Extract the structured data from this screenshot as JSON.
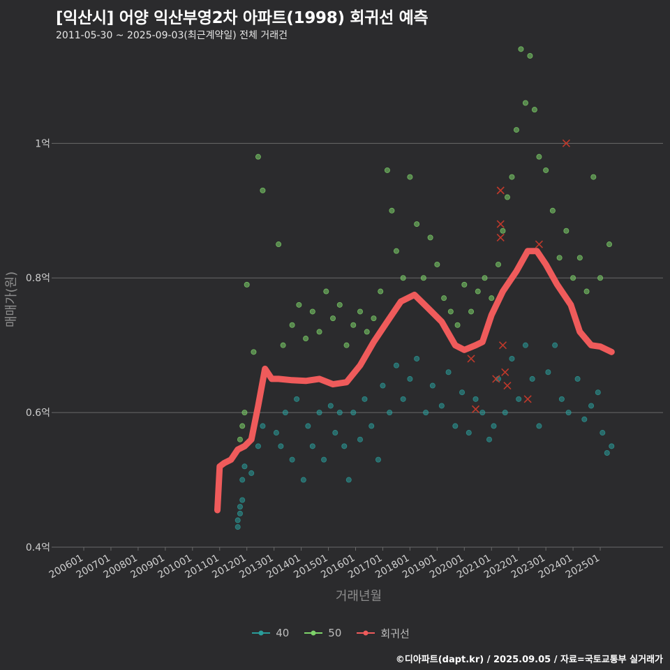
{
  "header": {
    "title": "[익산시] 어양 익산부영2차 아파트(1998) 회귀선 예측",
    "subtitle": "2011-05-30 ~ 2025-09-03(최근계약일) 전체 거래건"
  },
  "footer": {
    "credit": "©디아파트(dapt.kr) / 2025.09.05 / 자료=국토교통부 실거래가"
  },
  "colors": {
    "background": "#2b2b2d",
    "grid": "#6a6a6a",
    "series_40": "#2a9d9a",
    "series_50": "#7ed36a",
    "regression": "#ef5b5b",
    "cancelled_marker": "#c0392b"
  },
  "chart_data": {
    "type": "scatter",
    "title": "[익산시] 어양 익산부영2차 아파트(1998) 회귀선 예측",
    "subtitle": "2011-05-30 ~ 2025-09-03(최근계약일) 전체 거래건",
    "xlabel": "거래년월",
    "ylabel": "매매가(원)",
    "xlim": [
      "2006-01",
      "2025-12"
    ],
    "ylim": [
      0.4,
      1.13
    ],
    "y_unit": "억",
    "y_ticks": [
      {
        "value": 0.4,
        "label": "0.4억"
      },
      {
        "value": 0.6,
        "label": "0.6억"
      },
      {
        "value": 0.8,
        "label": "0.8억"
      },
      {
        "value": 1.0,
        "label": "1억"
      }
    ],
    "x_ticks": [
      "200601",
      "200701",
      "200801",
      "200901",
      "201001",
      "201101",
      "201201",
      "201301",
      "201401",
      "201501",
      "201601",
      "201701",
      "201801",
      "201901",
      "202001",
      "202101",
      "202201",
      "202301",
      "202401",
      "202501"
    ],
    "grid": true,
    "legend_position": "bottom",
    "legend": [
      {
        "name": "40",
        "key": "s40"
      },
      {
        "name": "50",
        "key": "s50"
      },
      {
        "name": "회귀선",
        "key": "reg"
      }
    ],
    "series": [
      {
        "name": "40",
        "color": "#2a9d9a",
        "points": [
          [
            "2011-09",
            0.43
          ],
          [
            "2011-09",
            0.44
          ],
          [
            "2011-10",
            0.45
          ],
          [
            "2011-10",
            0.46
          ],
          [
            "2011-11",
            0.47
          ],
          [
            "2011-11",
            0.5
          ],
          [
            "2011-12",
            0.52
          ],
          [
            "2012-03",
            0.51
          ],
          [
            "2012-06",
            0.55
          ],
          [
            "2012-08",
            0.58
          ],
          [
            "2013-02",
            0.57
          ],
          [
            "2013-04",
            0.55
          ],
          [
            "2013-06",
            0.6
          ],
          [
            "2013-09",
            0.53
          ],
          [
            "2013-11",
            0.62
          ],
          [
            "2014-02",
            0.5
          ],
          [
            "2014-04",
            0.58
          ],
          [
            "2014-06",
            0.55
          ],
          [
            "2014-09",
            0.6
          ],
          [
            "2014-11",
            0.53
          ],
          [
            "2015-02",
            0.61
          ],
          [
            "2015-04",
            0.57
          ],
          [
            "2015-06",
            0.6
          ],
          [
            "2015-08",
            0.55
          ],
          [
            "2015-10",
            0.5
          ],
          [
            "2015-12",
            0.6
          ],
          [
            "2016-03",
            0.56
          ],
          [
            "2016-05",
            0.62
          ],
          [
            "2016-08",
            0.58
          ],
          [
            "2016-11",
            0.53
          ],
          [
            "2017-01",
            0.64
          ],
          [
            "2017-04",
            0.6
          ],
          [
            "2017-07",
            0.67
          ],
          [
            "2017-10",
            0.62
          ],
          [
            "2018-01",
            0.65
          ],
          [
            "2018-04",
            0.68
          ],
          [
            "2018-08",
            0.6
          ],
          [
            "2018-11",
            0.64
          ],
          [
            "2019-03",
            0.61
          ],
          [
            "2019-06",
            0.66
          ],
          [
            "2019-09",
            0.58
          ],
          [
            "2019-12",
            0.63
          ],
          [
            "2020-03",
            0.57
          ],
          [
            "2020-06",
            0.62
          ],
          [
            "2020-09",
            0.6
          ],
          [
            "2020-12",
            0.56
          ],
          [
            "2021-02",
            0.58
          ],
          [
            "2021-04",
            0.65
          ],
          [
            "2021-07",
            0.6
          ],
          [
            "2021-10",
            0.68
          ],
          [
            "2022-01",
            0.62
          ],
          [
            "2022-04",
            0.7
          ],
          [
            "2022-07",
            0.65
          ],
          [
            "2022-10",
            0.58
          ],
          [
            "2023-02",
            0.66
          ],
          [
            "2023-05",
            0.7
          ],
          [
            "2023-08",
            0.62
          ],
          [
            "2023-11",
            0.6
          ],
          [
            "2024-03",
            0.65
          ],
          [
            "2024-06",
            0.59
          ],
          [
            "2024-09",
            0.61
          ],
          [
            "2024-12",
            0.63
          ],
          [
            "2025-02",
            0.57
          ],
          [
            "2025-04",
            0.54
          ],
          [
            "2025-06",
            0.55
          ]
        ]
      },
      {
        "name": "50",
        "color": "#7ed36a",
        "points": [
          [
            "2011-10",
            0.56
          ],
          [
            "2011-11",
            0.58
          ],
          [
            "2011-12",
            0.6
          ],
          [
            "2012-01",
            0.79
          ],
          [
            "2012-04",
            0.69
          ],
          [
            "2012-06",
            0.98
          ],
          [
            "2012-08",
            0.93
          ],
          [
            "2013-03",
            0.85
          ],
          [
            "2013-05",
            0.7
          ],
          [
            "2013-09",
            0.73
          ],
          [
            "2013-12",
            0.76
          ],
          [
            "2014-03",
            0.71
          ],
          [
            "2014-06",
            0.75
          ],
          [
            "2014-09",
            0.72
          ],
          [
            "2014-12",
            0.78
          ],
          [
            "2015-03",
            0.74
          ],
          [
            "2015-06",
            0.76
          ],
          [
            "2015-09",
            0.7
          ],
          [
            "2015-12",
            0.73
          ],
          [
            "2016-03",
            0.75
          ],
          [
            "2016-06",
            0.72
          ],
          [
            "2016-09",
            0.74
          ],
          [
            "2016-12",
            0.78
          ],
          [
            "2017-03",
            0.96
          ],
          [
            "2017-05",
            0.9
          ],
          [
            "2017-07",
            0.84
          ],
          [
            "2017-10",
            0.8
          ],
          [
            "2018-01",
            0.95
          ],
          [
            "2018-04",
            0.88
          ],
          [
            "2018-07",
            0.8
          ],
          [
            "2018-10",
            0.86
          ],
          [
            "2019-01",
            0.82
          ],
          [
            "2019-04",
            0.77
          ],
          [
            "2019-07",
            0.75
          ],
          [
            "2019-10",
            0.73
          ],
          [
            "2020-01",
            0.79
          ],
          [
            "2020-04",
            0.75
          ],
          [
            "2020-07",
            0.78
          ],
          [
            "2020-10",
            0.8
          ],
          [
            "2021-01",
            0.77
          ],
          [
            "2021-04",
            0.82
          ],
          [
            "2021-06",
            0.87
          ],
          [
            "2021-08",
            0.92
          ],
          [
            "2021-10",
            0.95
          ],
          [
            "2021-12",
            1.02
          ],
          [
            "2022-02",
            1.14
          ],
          [
            "2022-04",
            1.06
          ],
          [
            "2022-06",
            1.13
          ],
          [
            "2022-08",
            1.05
          ],
          [
            "2022-10",
            0.98
          ],
          [
            "2023-01",
            0.96
          ],
          [
            "2023-04",
            0.9
          ],
          [
            "2023-07",
            0.83
          ],
          [
            "2023-10",
            0.87
          ],
          [
            "2024-01",
            0.8
          ],
          [
            "2024-04",
            0.83
          ],
          [
            "2024-07",
            0.78
          ],
          [
            "2024-10",
            0.95
          ],
          [
            "2025-01",
            0.8
          ],
          [
            "2025-05",
            0.85
          ]
        ]
      },
      {
        "name": "회귀선",
        "color": "#ef5b5b",
        "points": [
          [
            "2010-12",
            0.455
          ],
          [
            "2011-01",
            0.52
          ],
          [
            "2011-03",
            0.525
          ],
          [
            "2011-06",
            0.53
          ],
          [
            "2011-09",
            0.545
          ],
          [
            "2011-12",
            0.55
          ],
          [
            "2012-03",
            0.56
          ],
          [
            "2012-06",
            0.61
          ],
          [
            "2012-09",
            0.665
          ],
          [
            "2012-12",
            0.65
          ],
          [
            "2013-03",
            0.65
          ],
          [
            "2013-09",
            0.648
          ],
          [
            "2014-03",
            0.647
          ],
          [
            "2014-09",
            0.65
          ],
          [
            "2015-03",
            0.642
          ],
          [
            "2015-09",
            0.645
          ],
          [
            "2016-03",
            0.67
          ],
          [
            "2016-09",
            0.705
          ],
          [
            "2017-03",
            0.735
          ],
          [
            "2017-09",
            0.765
          ],
          [
            "2018-03",
            0.775
          ],
          [
            "2018-09",
            0.755
          ],
          [
            "2019-03",
            0.735
          ],
          [
            "2019-09",
            0.7
          ],
          [
            "2020-01",
            0.693
          ],
          [
            "2020-06",
            0.7
          ],
          [
            "2020-09",
            0.705
          ],
          [
            "2021-01",
            0.745
          ],
          [
            "2021-06",
            0.78
          ],
          [
            "2021-12",
            0.81
          ],
          [
            "2022-05",
            0.84
          ],
          [
            "2022-09",
            0.84
          ],
          [
            "2023-01",
            0.82
          ],
          [
            "2023-06",
            0.79
          ],
          [
            "2023-12",
            0.76
          ],
          [
            "2024-04",
            0.72
          ],
          [
            "2024-09",
            0.7
          ],
          [
            "2025-01",
            0.698
          ],
          [
            "2025-06",
            0.69
          ]
        ]
      }
    ],
    "cancelled_points": [
      [
        "2020-04",
        0.68
      ],
      [
        "2020-06",
        0.605
      ],
      [
        "2021-03",
        0.65
      ],
      [
        "2021-05",
        0.93
      ],
      [
        "2021-05",
        0.88
      ],
      [
        "2021-05",
        0.86
      ],
      [
        "2021-06",
        0.7
      ],
      [
        "2021-07",
        0.66
      ],
      [
        "2021-08",
        0.64
      ],
      [
        "2022-05",
        0.62
      ],
      [
        "2022-10",
        0.85
      ],
      [
        "2023-10",
        1.0
      ]
    ]
  }
}
